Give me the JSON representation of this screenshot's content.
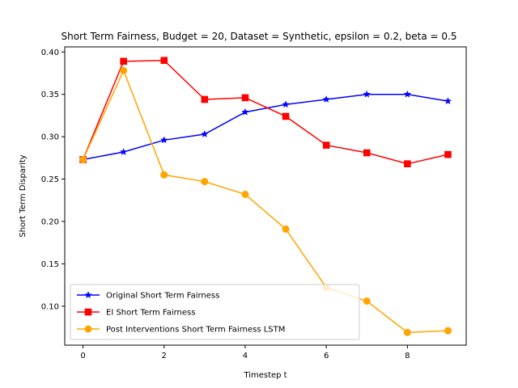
{
  "chart_data": {
    "type": "line",
    "title": "Short Term Fairness, Budget = 20, Dataset = Synthetic, epsilon = 0.2, beta = 0.5",
    "xlabel": "Timestep t",
    "ylabel": "Short Term Disparity",
    "xlim": [
      -0.45,
      9.45
    ],
    "ylim": [
      0.054,
      0.406
    ],
    "xticks": [
      0,
      2,
      4,
      6,
      8
    ],
    "xtick_labels": [
      "0",
      "2",
      "4",
      "6",
      "8"
    ],
    "yticks": [
      0.1,
      0.15,
      0.2,
      0.25,
      0.3,
      0.35,
      0.4
    ],
    "ytick_labels": [
      "0.10",
      "0.15",
      "0.20",
      "0.25",
      "0.30",
      "0.35",
      "0.40"
    ],
    "grid": false,
    "legend_position": "lower-left",
    "x": [
      0,
      1,
      2,
      3,
      4,
      5,
      6,
      7,
      8,
      9
    ],
    "series": [
      {
        "name": "Original Short Term Fairness",
        "color": "#0000ff",
        "marker": "star",
        "values": [
          0.273,
          0.282,
          0.296,
          0.303,
          0.329,
          0.338,
          0.344,
          0.35,
          0.35,
          0.342
        ]
      },
      {
        "name": "EI Short Term Fairness",
        "color": "#ff0000",
        "marker": "square",
        "values": [
          0.273,
          0.389,
          0.39,
          0.344,
          0.346,
          0.324,
          0.29,
          0.281,
          0.268,
          0.279
        ]
      },
      {
        "name": "Post Interventions Short Term Fairness LSTM",
        "color": "#ffa500",
        "marker": "circle",
        "values": [
          0.273,
          0.378,
          0.255,
          0.247,
          0.232,
          0.191,
          0.122,
          0.106,
          0.069,
          0.071
        ]
      }
    ]
  }
}
